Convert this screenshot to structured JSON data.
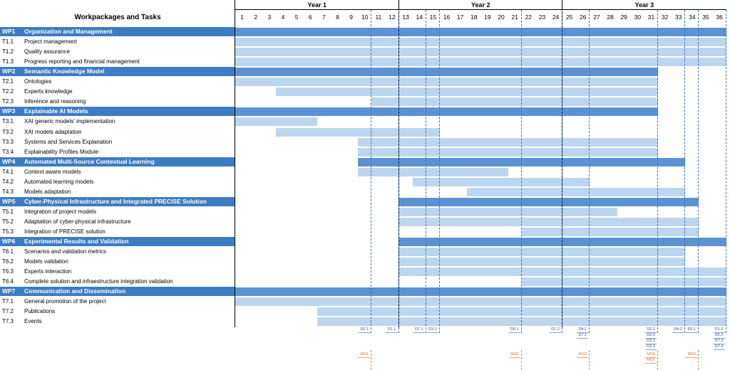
{
  "header": {
    "title": "Workpackages and Tasks"
  },
  "years": [
    {
      "label": "Year 1",
      "start": 1,
      "end": 12
    },
    {
      "label": "Year 2",
      "start": 13,
      "end": 24
    },
    {
      "label": "Year 3",
      "start": 25,
      "end": 36
    }
  ],
  "months": [
    "1",
    "2",
    "3",
    "4",
    "5",
    "6",
    "7",
    "8",
    "9",
    "10",
    "11",
    "12",
    "13",
    "14",
    "15",
    "16",
    "17",
    "18",
    "19",
    "20",
    "21",
    "22",
    "23",
    "24",
    "25",
    "26",
    "27",
    "28",
    "29",
    "30",
    "31",
    "32",
    "33",
    "34",
    "35",
    "36"
  ],
  "rows": [
    {
      "type": "wp",
      "id": "WP1",
      "label": "Organization and Management",
      "start": 1,
      "end": 36
    },
    {
      "type": "task",
      "id": "T1.1",
      "label": "Project management",
      "start": 1,
      "end": 36
    },
    {
      "type": "task",
      "id": "T1.2",
      "label": "Quality assurance",
      "start": 1,
      "end": 36
    },
    {
      "type": "task",
      "id": "T1.3",
      "label": "Progress reporting and financial management",
      "start": 1,
      "end": 36
    },
    {
      "type": "wp",
      "id": "WP2",
      "label": "Semantic Knowledge Model",
      "start": 1,
      "end": 31
    },
    {
      "type": "task",
      "id": "T2.1",
      "label": "Ontologies",
      "start": 1,
      "end": 31
    },
    {
      "type": "task",
      "id": "T2.2",
      "label": "Experts knowledge",
      "start": 4,
      "end": 31
    },
    {
      "type": "task",
      "id": "T2.3",
      "label": "Inference and reasoning",
      "start": 11,
      "end": 31
    },
    {
      "type": "wp",
      "id": "WP3",
      "label": "Explainable AI Models",
      "start": 1,
      "end": 31
    },
    {
      "type": "task",
      "id": "T3.1",
      "label": "XAI generic models' implementation",
      "start": 1,
      "end": 6
    },
    {
      "type": "task",
      "id": "T3.2",
      "label": "XAI models adaptation",
      "start": 4,
      "end": 15
    },
    {
      "type": "task",
      "id": "T3.3",
      "label": "Systems and Services Explanation",
      "start": 10,
      "end": 31
    },
    {
      "type": "task",
      "id": "T3.4",
      "label": "Explainability Profiles Module",
      "start": 10,
      "end": 31
    },
    {
      "type": "wp",
      "id": "WP4",
      "label": "Automated Multi-Source Contextual Learning",
      "start": 10,
      "end": 33
    },
    {
      "type": "task",
      "id": "T4.1",
      "label": "Context aware models",
      "start": 10,
      "end": 20
    },
    {
      "type": "task",
      "id": "T4.2",
      "label": "Automated learning models",
      "start": 14,
      "end": 26
    },
    {
      "type": "task",
      "id": "T4.3",
      "label": "Models adaptation",
      "start": 18,
      "end": 33
    },
    {
      "type": "wp",
      "id": "WP5",
      "label": "Cyber-Physical Infrastructure and Integrated PRECISE Solution",
      "start": 13,
      "end": 34
    },
    {
      "type": "task",
      "id": "T5.1",
      "label": "Integration of project models",
      "start": 13,
      "end": 28
    },
    {
      "type": "task",
      "id": "T5.2",
      "label": "Adaptation of cyber-physical infrastructure",
      "start": 13,
      "end": 34
    },
    {
      "type": "task",
      "id": "T5.3",
      "label": "Integration of PRECISE solution",
      "start": 22,
      "end": 34
    },
    {
      "type": "wp",
      "id": "WP6",
      "label": "Experimental Results and Validation",
      "start": 13,
      "end": 36
    },
    {
      "type": "task",
      "id": "T6.1",
      "label": "Scenarios and validation metrics",
      "start": 13,
      "end": 33
    },
    {
      "type": "task",
      "id": "T6.2",
      "label": "Models validation",
      "start": 13,
      "end": 33
    },
    {
      "type": "task",
      "id": "T6.3",
      "label": "Experts interaction",
      "start": 13,
      "end": 36
    },
    {
      "type": "task",
      "id": "T6.4",
      "label": "Complete solution and infraestructure integration validation",
      "start": 22,
      "end": 36
    },
    {
      "type": "wp",
      "id": "WP7",
      "label": "Communication and Dissemination",
      "start": 1,
      "end": 36
    },
    {
      "type": "task",
      "id": "T7.1",
      "label": "General promotion of the project",
      "start": 1,
      "end": 36
    },
    {
      "type": "task",
      "id": "T7.2",
      "label": "Publications",
      "start": 7,
      "end": 36
    },
    {
      "type": "task",
      "id": "T7.3",
      "label": "Events",
      "start": 7,
      "end": 36
    }
  ],
  "deliverables": [
    {
      "month": 10,
      "labels": [
        "D2.1"
      ]
    },
    {
      "month": 12,
      "labels": [
        "D1.1"
      ]
    },
    {
      "month": 14,
      "labels": [
        "D7.1"
      ]
    },
    {
      "month": 15,
      "labels": [
        "D3.1"
      ]
    },
    {
      "month": 21,
      "labels": [
        "D6.1"
      ]
    },
    {
      "month": 24,
      "labels": [
        "D1.2"
      ]
    },
    {
      "month": 26,
      "labels": [
        "D4.1",
        "D7.2"
      ]
    },
    {
      "month": 31,
      "labels": [
        "D2.2",
        "D2.3",
        "D3.2",
        "D3.3"
      ]
    },
    {
      "month": 33,
      "labels": [
        "D4.2"
      ]
    },
    {
      "month": 34,
      "labels": [
        "D5.1"
      ]
    },
    {
      "month": 36,
      "labels": [
        "D1.3",
        "D6.2",
        "D7.3",
        "D7.4"
      ]
    }
  ],
  "milestones": [
    {
      "month": 10,
      "labels": [
        "MS1"
      ]
    },
    {
      "month": 21,
      "labels": [
        "MS2"
      ]
    },
    {
      "month": 26,
      "labels": [
        "MS3"
      ]
    },
    {
      "month": 31,
      "labels": [
        "MS4",
        "MS5"
      ]
    },
    {
      "month": 34,
      "labels": [
        "MS6"
      ]
    }
  ],
  "colors": {
    "wp_band": "#3d7cc3",
    "wp_bar": "#5b93d2",
    "task_bar": "#bcd6ef",
    "deliverable": "#2d4f8f",
    "milestone": "#d9702a"
  }
}
